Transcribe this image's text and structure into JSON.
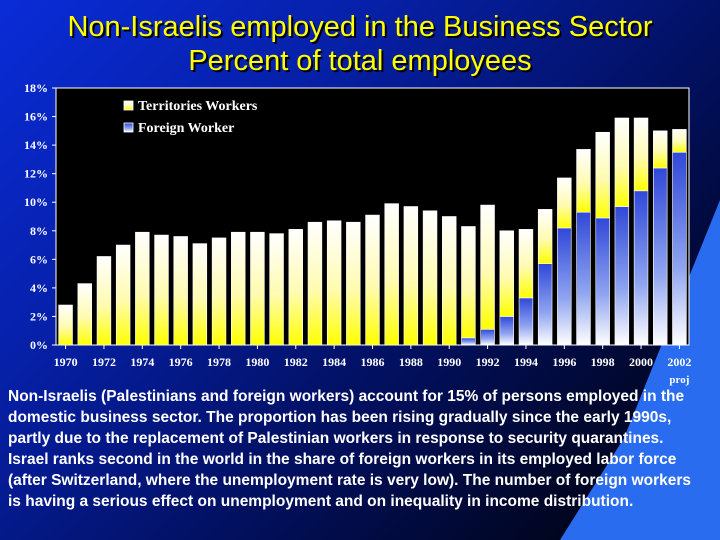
{
  "slide": {
    "title_line1": "Non-Israelis employed in the Business Sector",
    "title_line2": "Percent of total employees",
    "caption": "Non-Israelis (Palestinians and foreign workers) account for 15% of persons employed in the domestic business sector. The proportion has been rising gradually since the early 1990s, partly due to the replacement of Palestinian workers in response to security quarantines. Israel ranks second in the world in the share of foreign workers in its employed labor force (after Switzerland, where the unemployment rate is very low). The number of foreign workers is having a serious effect on unemployment and on inequality in income distribution."
  },
  "chart_data": {
    "type": "bar",
    "stacked": true,
    "title": "",
    "xlabel": "",
    "ylabel": "",
    "ylim": [
      0,
      18
    ],
    "y_ticks": [
      "0%",
      "2%",
      "4%",
      "6%",
      "8%",
      "10%",
      "12%",
      "14%",
      "16%",
      "18%"
    ],
    "x_tick_labels": [
      "1970",
      "1972",
      "1974",
      "1976",
      "1978",
      "1980",
      "1982",
      "1984",
      "1986",
      "1988",
      "1990",
      "1992",
      "1994",
      "1996",
      "1998",
      "2000",
      "2002"
    ],
    "x_tick_note": "proj",
    "categories": [
      "1970",
      "1971",
      "1972",
      "1973",
      "1974",
      "1975",
      "1976",
      "1977",
      "1978",
      "1979",
      "1980",
      "1981",
      "1982",
      "1983",
      "1984",
      "1985",
      "1986",
      "1987",
      "1988",
      "1989",
      "1990",
      "1991",
      "1992",
      "1993",
      "1994",
      "1995",
      "1996",
      "1997",
      "1998",
      "1999",
      "2000",
      "2001",
      "2002"
    ],
    "legend_position": "top-left",
    "series": [
      {
        "name": "Foreign Worker",
        "color": "#3a5ae0",
        "values": [
          0,
          0,
          0,
          0,
          0,
          0,
          0,
          0,
          0,
          0,
          0,
          0,
          0,
          0,
          0,
          0,
          0,
          0,
          0,
          0,
          0,
          0.5,
          1.1,
          2.0,
          3.3,
          5.7,
          8.2,
          9.3,
          8.9,
          9.7,
          10.8,
          12.4,
          13.5
        ]
      },
      {
        "name": "Territories Workers",
        "color": "#ffff00",
        "values": [
          2.8,
          4.3,
          6.2,
          7.0,
          7.9,
          7.7,
          7.6,
          7.1,
          7.5,
          7.9,
          7.9,
          7.8,
          8.1,
          8.6,
          8.7,
          8.6,
          9.1,
          9.9,
          9.7,
          9.4,
          9.0,
          7.8,
          8.7,
          6.0,
          4.8,
          3.8,
          3.5,
          4.4,
          6.0,
          6.2,
          5.1,
          2.6,
          1.6
        ]
      }
    ]
  }
}
